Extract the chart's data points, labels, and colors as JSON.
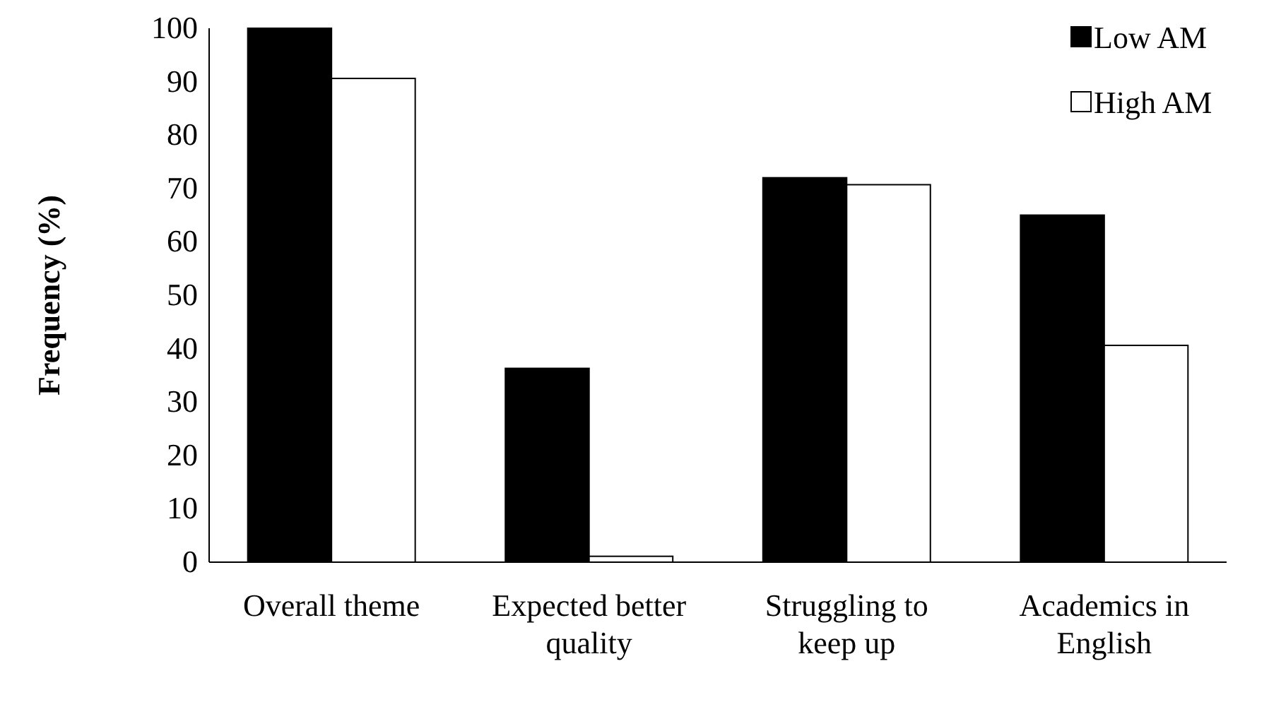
{
  "chart_data": {
    "type": "bar",
    "ylabel": "Frequency (%)",
    "categories": [
      "Overall theme",
      "Expected better quality",
      "Struggling to keep up",
      "Academics in English"
    ],
    "series": [
      {
        "name": "Low AM",
        "color": "#000000",
        "values": [
          100,
          36.3,
          72,
          65
        ]
      },
      {
        "name": "High AM",
        "color": "#ffffff",
        "values": [
          90.6,
          1.1,
          70.7,
          40.6
        ]
      }
    ],
    "ylim": [
      0,
      100
    ],
    "yticks": [
      0,
      10,
      20,
      30,
      40,
      50,
      60,
      70,
      80,
      90,
      100
    ],
    "grid": false,
    "legend": "top right"
  }
}
